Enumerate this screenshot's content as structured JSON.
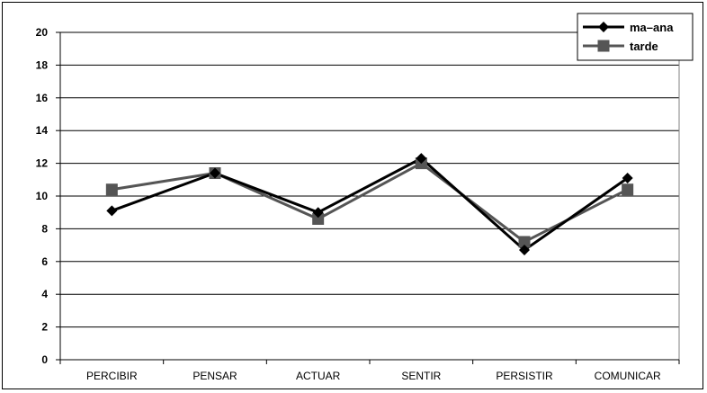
{
  "chart_data": {
    "type": "line",
    "categories": [
      "PERCIBIR",
      "PENSAR",
      "ACTUAR",
      "SENTIR",
      "PERSISTIR",
      "COMUNICAR"
    ],
    "series": [
      {
        "name": "ma–ana",
        "values": [
          9.1,
          11.4,
          9.0,
          12.3,
          6.7,
          11.1
        ],
        "color": "#000000",
        "marker": "diamond"
      },
      {
        "name": "tarde",
        "values": [
          10.4,
          11.4,
          8.6,
          12.0,
          7.2,
          10.4
        ],
        "color": "#555555",
        "marker": "square"
      }
    ],
    "ylim": [
      0,
      20
    ],
    "yticks": [
      0,
      2,
      4,
      6,
      8,
      10,
      12,
      14,
      16,
      18,
      20
    ],
    "grid": true,
    "legend": "top-right",
    "title": "",
    "xlabel": "",
    "ylabel": ""
  }
}
